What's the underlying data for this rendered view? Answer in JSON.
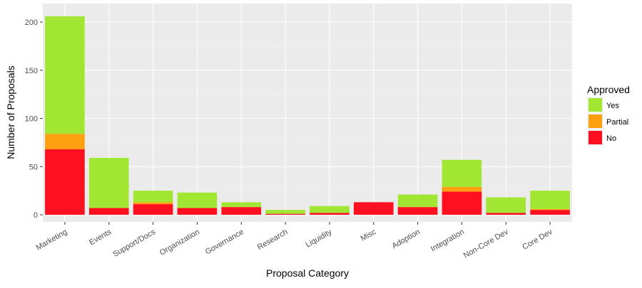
{
  "chart_data": {
    "type": "bar",
    "stacked": true,
    "xlabel": "Proposal Category",
    "ylabel": "Number of Proposals",
    "ylim": [
      0,
      215
    ],
    "yticks": [
      0,
      50,
      100,
      150,
      200
    ],
    "grid": true,
    "legend_position": "right",
    "legend_title": "Approved",
    "categories": [
      "Marketing",
      "Events",
      "Support/Docs",
      "Organization",
      "Governance",
      "Research",
      "Liquidity",
      "Misc",
      "Adoption",
      "Integration",
      "Non-Core Dev",
      "Core Dev"
    ],
    "series": [
      {
        "name": "No",
        "color": "#ff1020",
        "values": [
          68,
          7,
          11,
          7,
          8,
          1,
          2,
          13,
          8,
          24,
          2,
          5
        ]
      },
      {
        "name": "Partial",
        "color": "#ffa010",
        "values": [
          16,
          0,
          2,
          0,
          0,
          0,
          0,
          0,
          0,
          5,
          0,
          1
        ]
      },
      {
        "name": "Yes",
        "color": "#a0e632",
        "values": [
          122,
          52,
          12,
          16,
          5,
          4,
          7,
          0,
          13,
          28,
          16,
          19
        ]
      }
    ],
    "legend_order": [
      "Yes",
      "Partial",
      "No"
    ]
  }
}
